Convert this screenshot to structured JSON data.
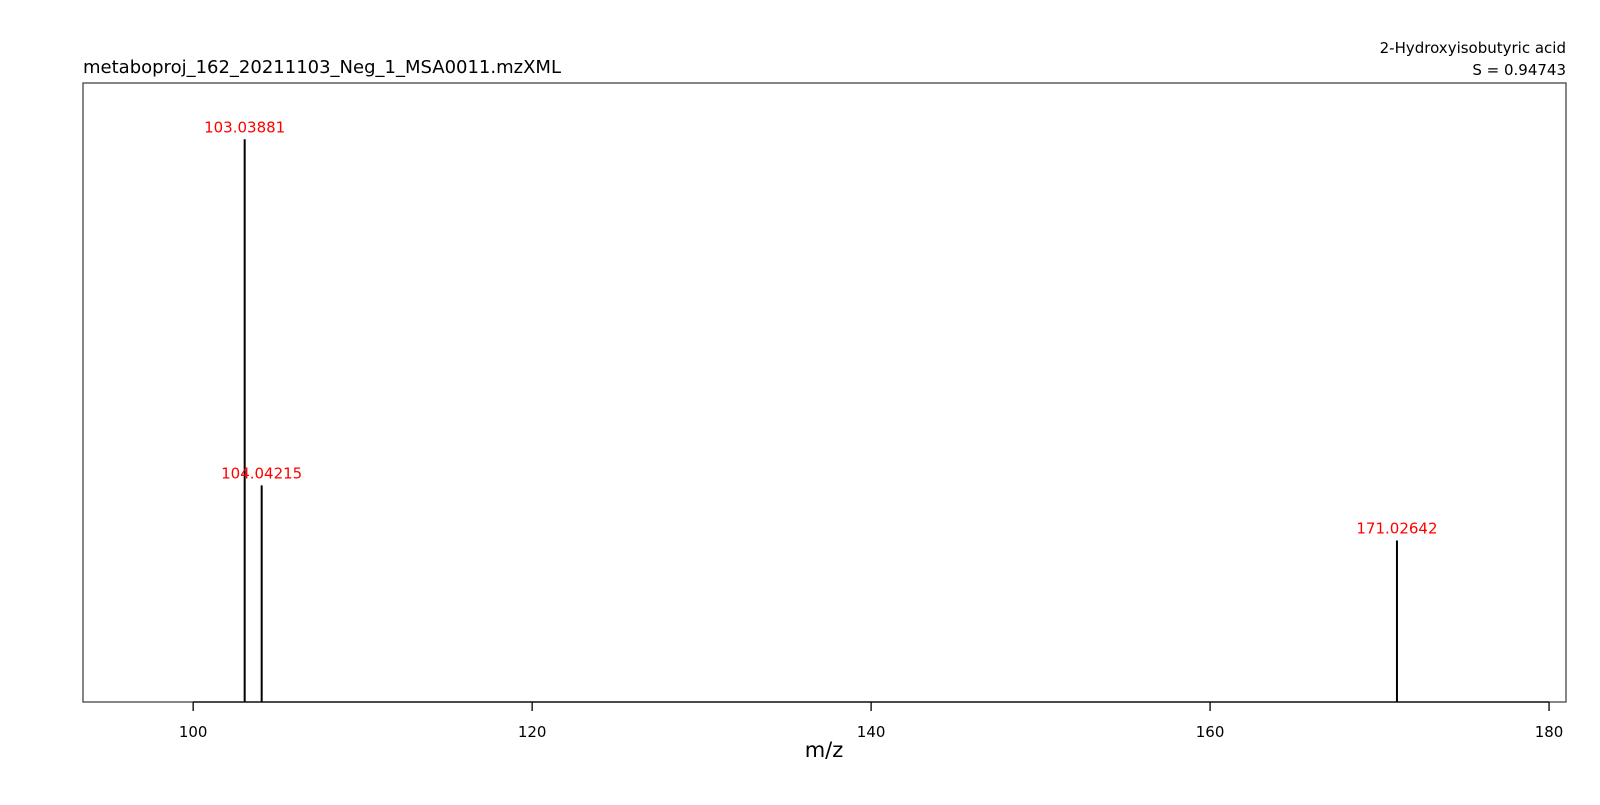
{
  "chart_data": {
    "type": "bar",
    "subtype": "mass-spectrum-stick",
    "title": "metaboproj_162_20211103_Neg_1_MSA0011.mzXML",
    "compound": "2-Hydroxyisobutyric acid",
    "score": "S = 0.94743",
    "xlabel": "m/z",
    "ylabel": "",
    "xlim": [
      93.5,
      181
    ],
    "ylim": [
      0,
      1.1
    ],
    "x_ticks": [
      100,
      120,
      140,
      160,
      180
    ],
    "grid": false,
    "y_axis_shown": false,
    "peak_color": "#000000",
    "label_color": "#ff0000",
    "peaks": [
      {
        "mz": 103.03881,
        "label": "103.03881",
        "intensity": 1.0
      },
      {
        "mz": 104.04215,
        "label": "104.04215",
        "intensity": 0.385
      },
      {
        "mz": 171.02642,
        "label": "171.02642",
        "intensity": 0.287
      }
    ]
  }
}
